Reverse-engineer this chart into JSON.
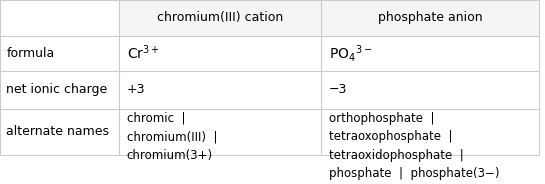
{
  "col_headers": [
    "chromium(III) cation",
    "phosphate anion"
  ],
  "row_labels": [
    "formula",
    "net ionic charge",
    "alternate names"
  ],
  "col1_formula": "Cr$^{3+}$",
  "col2_formula": "PO$_4$$^{3-}$",
  "col1_charge": "+3",
  "col2_charge": "−3",
  "col1_names": "chromic  |\nchromium(III)  |\nchromium(3+)",
  "col2_names": "orthophosphate  |\ntetraoxophosphate  |\ntetraoxidophosphate  |\nphosphate  |  phosphate(3−)",
  "bg_color": "#ffffff",
  "header_bg": "#f5f5f5",
  "grid_color": "#cccccc",
  "text_color": "#000000",
  "font_size": 9,
  "header_font_size": 9
}
